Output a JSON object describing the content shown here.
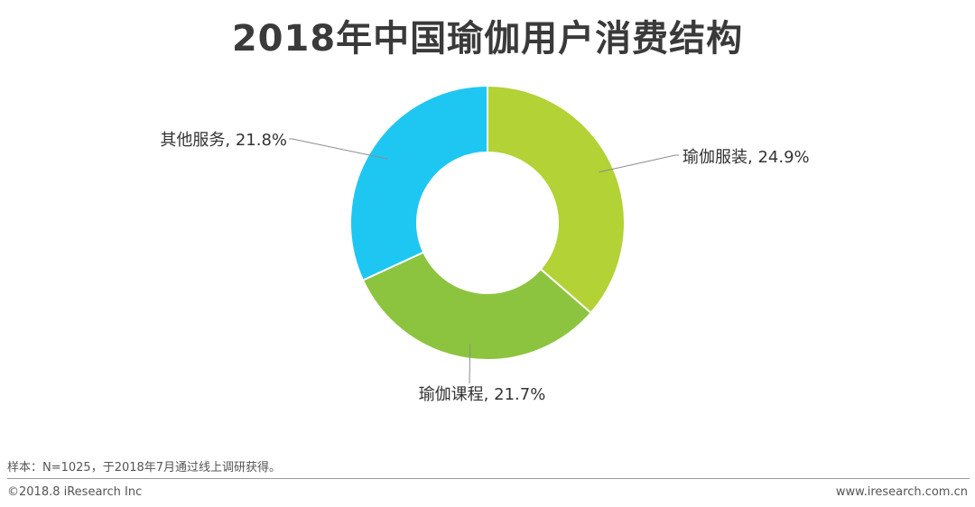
{
  "chart_data": {
    "type": "pie",
    "variant": "donut",
    "title": "2018年中国瑜伽用户消费结构",
    "slices": [
      {
        "label": "瑜伽服装, 24.9%",
        "value": 24.9,
        "color": "#b2d235"
      },
      {
        "label": "瑜伽课程, 21.7%",
        "value": 21.7,
        "color": "#8cc43f"
      },
      {
        "label": "其他服务, 21.8%",
        "value": 21.8,
        "color": "#1ec7f2"
      }
    ],
    "legend": "none"
  },
  "footer": {
    "note": "样本：N=1025，于2018年7月通过线上调研获得。",
    "copyright": "©2018.8 iResearch Inc",
    "website": "www.iresearch.com.cn"
  }
}
